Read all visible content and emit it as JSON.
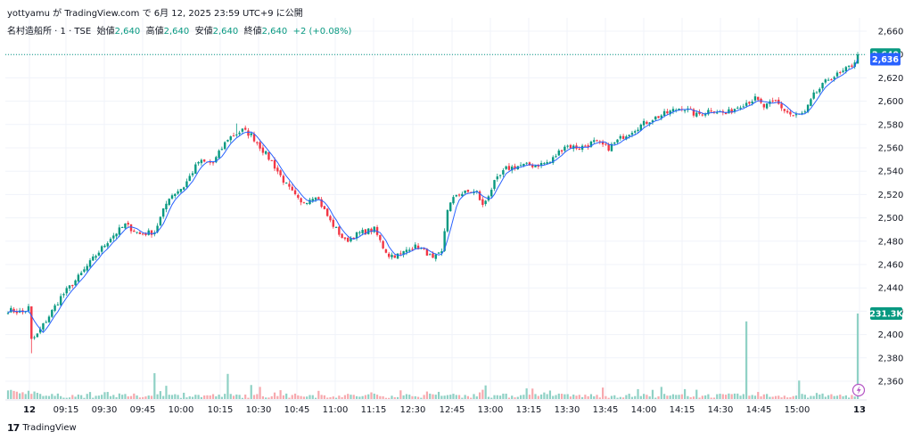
{
  "header": {
    "title_line": "yottyamu が TradingView.com で 6月 12, 2025 23:59 UTC+9 に公開",
    "symbol": "名村造船所 · 1 · TSE",
    "open_label": "始値",
    "open_value": "2,640",
    "high_label": "高値",
    "high_value": "2,640",
    "low_label": "安値",
    "low_value": "2,640",
    "close_label": "終値",
    "close_value": "2,640",
    "change": "+2 (+0.08%)"
  },
  "footer": {
    "brand": "TradingView"
  },
  "colors": {
    "up": "#089981",
    "down": "#f23645",
    "up_vol": "#8fd1c5",
    "down_vol": "#f7a9ae",
    "ma": "#2962ff",
    "last_bg": "#089981",
    "ma_bg": "#2962ff",
    "grid": "#f0f3fa"
  },
  "chart_data": {
    "type": "candlestick",
    "y_axis": {
      "ticks": [
        2360,
        2380,
        2400,
        2420,
        2440,
        2460,
        2480,
        2500,
        2520,
        2540,
        2560,
        2580,
        2600,
        2620,
        2640,
        2660
      ],
      "tick_labels": [
        "2,360",
        "2,380",
        "2,400",
        "2,420",
        "2,440",
        "2,460",
        "2,480",
        "2,500",
        "2,520",
        "2,540",
        "2,560",
        "2,580",
        "2,600",
        "2,620",
        "2,640",
        "2,660"
      ],
      "ylim": [
        2350,
        2668
      ]
    },
    "x_axis": {
      "tick_labels": [
        "12",
        "09:15",
        "09:30",
        "09:45",
        "10:00",
        "10:15",
        "10:30",
        "10:45",
        "11:00",
        "11:15",
        "12:30",
        "12:45",
        "13:00",
        "13:15",
        "13:30",
        "13:45",
        "14:00",
        "14:15",
        "14:30",
        "14:45",
        "15:00",
        "13"
      ]
    },
    "price_path": [
      [
        0,
        2421
      ],
      [
        5,
        2419
      ],
      [
        7,
        2423
      ],
      [
        8,
        2395
      ],
      [
        10,
        2400
      ],
      [
        18,
        2432
      ],
      [
        25,
        2452
      ],
      [
        30,
        2468
      ],
      [
        35,
        2483
      ],
      [
        40,
        2494
      ],
      [
        45,
        2486
      ],
      [
        50,
        2488
      ],
      [
        55,
        2518
      ],
      [
        60,
        2527
      ],
      [
        65,
        2548
      ],
      [
        70,
        2547
      ],
      [
        75,
        2568
      ],
      [
        80,
        2575
      ],
      [
        83,
        2571
      ],
      [
        90,
        2548
      ],
      [
        95,
        2528
      ],
      [
        100,
        2512
      ],
      [
        105,
        2520
      ],
      [
        110,
        2497
      ],
      [
        115,
        2480
      ],
      [
        120,
        2487
      ],
      [
        125,
        2490
      ],
      [
        128,
        2475
      ],
      [
        130,
        2468
      ],
      [
        134,
        2468
      ],
      [
        137,
        2475
      ],
      [
        140,
        2475
      ],
      [
        143,
        2470
      ],
      [
        145,
        2464
      ],
      [
        148,
        2470
      ],
      [
        150,
        2508
      ],
      [
        153,
        2520
      ],
      [
        157,
        2522
      ],
      [
        160,
        2522
      ],
      [
        162,
        2510
      ],
      [
        166,
        2530
      ],
      [
        170,
        2542
      ],
      [
        175,
        2545
      ],
      [
        180,
        2545
      ],
      [
        185,
        2548
      ],
      [
        190,
        2562
      ],
      [
        195,
        2560
      ],
      [
        200,
        2565
      ],
      [
        205,
        2560
      ],
      [
        210,
        2570
      ],
      [
        215,
        2578
      ],
      [
        220,
        2585
      ],
      [
        225,
        2590
      ],
      [
        230,
        2595
      ],
      [
        235,
        2588
      ],
      [
        240,
        2593
      ],
      [
        245,
        2589
      ],
      [
        250,
        2597
      ],
      [
        255,
        2602
      ],
      [
        258,
        2595
      ],
      [
        262,
        2600
      ],
      [
        265,
        2592
      ],
      [
        268,
        2587
      ],
      [
        272,
        2590
      ],
      [
        275,
        2605
      ],
      [
        280,
        2619
      ],
      [
        285,
        2625
      ],
      [
        288,
        2631
      ],
      [
        290,
        2638
      ]
    ],
    "last_price": {
      "value": 2640,
      "label": "2,640"
    },
    "ma_value": {
      "value": 2636,
      "label": "2,636"
    },
    "volume": {
      "last_label": "231.3K",
      "max_k": 231.3
    }
  }
}
